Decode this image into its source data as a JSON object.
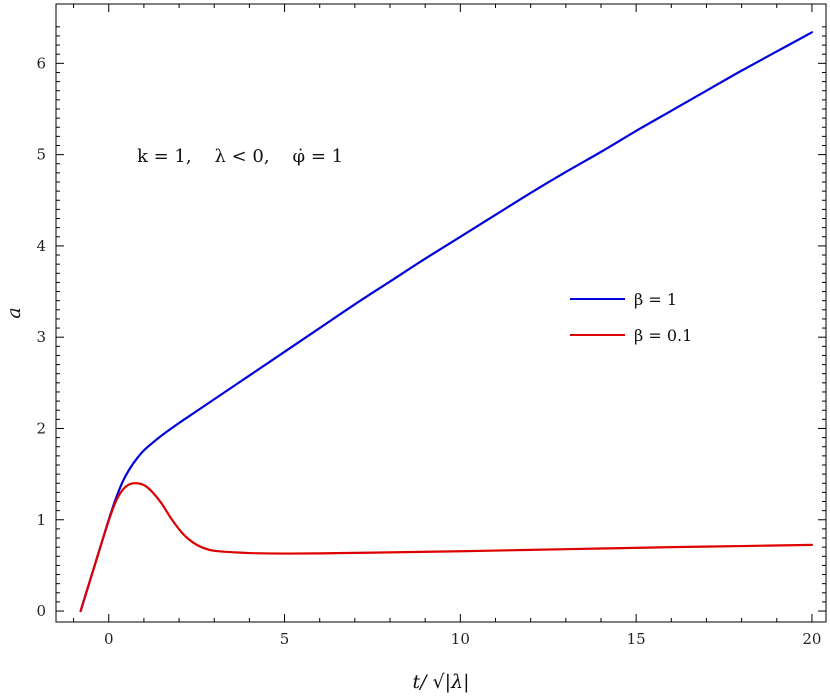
{
  "chart_data": {
    "type": "line",
    "title": "",
    "xlabel": "t/ √|λ|",
    "ylabel": "a",
    "xlim": [
      -1.5,
      20.4
    ],
    "ylim": [
      -0.12,
      6.65
    ],
    "xticks": [
      0,
      5,
      10,
      15,
      20
    ],
    "yticks": [
      0,
      1,
      2,
      3,
      4,
      5,
      6
    ],
    "annotation": "k = 1,    λ < 0,    φ̇ = 1",
    "legend_position": "center-right",
    "grid": false,
    "series": [
      {
        "name": "β = 1",
        "color": "#0000dd",
        "x": [
          -0.8,
          -0.6,
          -0.4,
          -0.2,
          0.0,
          0.2,
          0.4,
          0.6,
          0.8,
          1.0,
          1.3,
          1.6,
          2.0,
          2.5,
          3.0,
          4.0,
          5.0,
          6.0,
          7.0,
          8.0,
          9.0,
          10.0,
          11.0,
          12.0,
          13.0,
          14.0,
          15.0,
          16.0,
          17.0,
          18.0,
          19.0,
          20.0
        ],
        "y": [
          0.0,
          0.25,
          0.5,
          0.75,
          1.0,
          1.23,
          1.42,
          1.56,
          1.67,
          1.76,
          1.86,
          1.95,
          2.06,
          2.19,
          2.32,
          2.58,
          2.84,
          3.1,
          3.36,
          3.61,
          3.86,
          4.1,
          4.34,
          4.58,
          4.81,
          5.03,
          5.26,
          5.48,
          5.7,
          5.92,
          6.13,
          6.34
        ]
      },
      {
        "name": "β = 0.1",
        "color": "#dd0000",
        "x": [
          -0.8,
          -0.6,
          -0.4,
          -0.2,
          0.0,
          0.2,
          0.4,
          0.6,
          0.8,
          1.0,
          1.2,
          1.5,
          1.8,
          2.1,
          2.4,
          2.7,
          3.0,
          3.5,
          4.0,
          5.0,
          6.0,
          7.0,
          8.0,
          10.0,
          12.0,
          14.0,
          16.0,
          18.0,
          20.0
        ],
        "y": [
          0.0,
          0.25,
          0.5,
          0.75,
          0.99,
          1.2,
          1.33,
          1.39,
          1.4,
          1.38,
          1.32,
          1.18,
          1.0,
          0.85,
          0.75,
          0.69,
          0.66,
          0.645,
          0.635,
          0.63,
          0.632,
          0.637,
          0.643,
          0.655,
          0.67,
          0.685,
          0.7,
          0.712,
          0.725
        ]
      }
    ]
  }
}
